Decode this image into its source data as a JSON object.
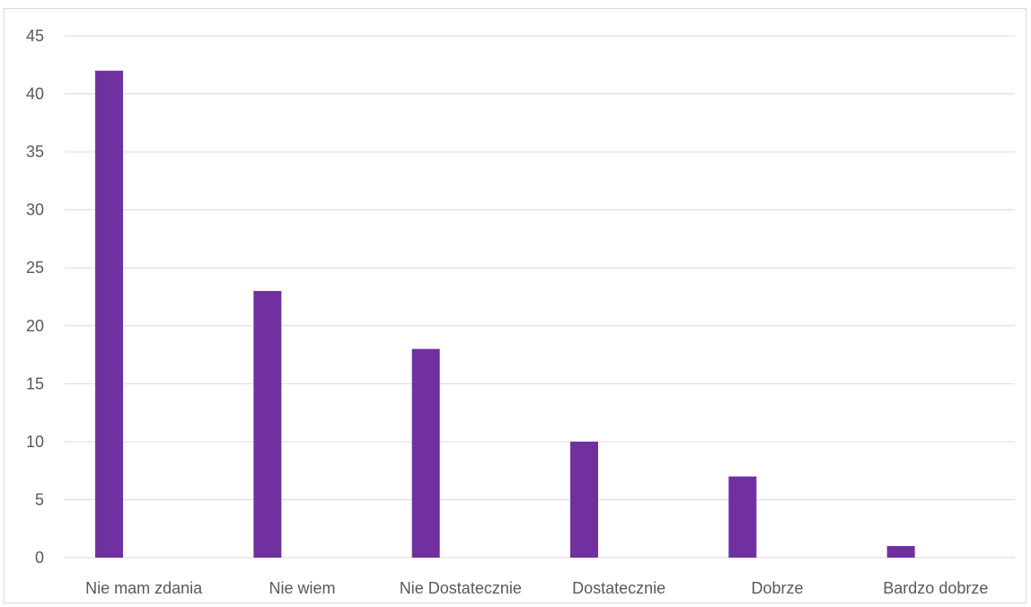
{
  "chart_data": {
    "type": "bar",
    "categories": [
      "Nie mam zdania",
      "Nie wiem",
      "Nie Dostatecznie",
      "Dostatecznie",
      "Dobrze",
      "Bardzo dobrze"
    ],
    "series": [
      {
        "values": [
          42,
          23,
          18,
          10,
          7,
          1
        ],
        "color": "#7030a0"
      }
    ],
    "ylim": [
      0,
      45
    ],
    "yticks": [
      0,
      5,
      10,
      15,
      20,
      25,
      30,
      35,
      40,
      45
    ],
    "grid": true,
    "gridColor": "#d9d9d9",
    "legend": "none"
  }
}
